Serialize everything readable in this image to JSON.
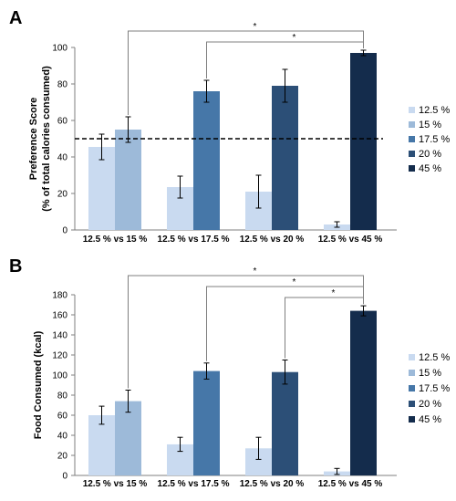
{
  "colors": {
    "12.5 %": "#c9daf0",
    "15 %": "#9dbad9",
    "17.5 %": "#4677a8",
    "20 %": "#2c4f77",
    "45 %": "#142c4c"
  },
  "chart_data": [
    {
      "panel": "A",
      "type": "bar",
      "ylabel": [
        "Preference Score",
        "(% of total calories consumed)"
      ],
      "ylim": [
        0,
        100
      ],
      "yticks": [
        0,
        20,
        40,
        60,
        80,
        100
      ],
      "reference_line": 50,
      "categories": [
        "12.5 % vs 15 %",
        "12.5 % vs 17.5 %",
        "12.5 % vs 20 %",
        "12.5 % vs 45 %"
      ],
      "groups": [
        {
          "bars": [
            {
              "series": "12.5 %",
              "value": 45.5,
              "err": 7
            },
            {
              "series": "15 %",
              "value": 55,
              "err": 7
            }
          ]
        },
        {
          "bars": [
            {
              "series": "12.5 %",
              "value": 23.5,
              "err": 6
            },
            {
              "series": "17.5 %",
              "value": 76,
              "err": 6
            }
          ]
        },
        {
          "bars": [
            {
              "series": "12.5 %",
              "value": 21,
              "err": 9
            },
            {
              "series": "20 %",
              "value": 79,
              "err": 9
            }
          ]
        },
        {
          "bars": [
            {
              "series": "12.5 %",
              "value": 3,
              "err": 1.5
            },
            {
              "series": "45 %",
              "value": 97,
              "err": 1.5
            }
          ]
        }
      ],
      "brackets": [
        {
          "from_group": 0,
          "label": "*"
        },
        {
          "from_group": 1,
          "label": "*"
        }
      ],
      "legend": [
        "12.5 %",
        "15 %",
        "17.5 %",
        "20 %",
        "45 %"
      ]
    },
    {
      "panel": "B",
      "type": "bar",
      "ylabel": [
        "Food Consumed (kcal)"
      ],
      "ylim": [
        0,
        180
      ],
      "yticks": [
        0,
        20,
        40,
        60,
        80,
        100,
        120,
        140,
        160,
        180
      ],
      "categories": [
        "12.5 % vs 15 %",
        "12.5 % vs 17.5 %",
        "12.5 % vs 20 %",
        "12.5 % vs 45 %"
      ],
      "groups": [
        {
          "bars": [
            {
              "series": "12.5 %",
              "value": 60,
              "err": 9
            },
            {
              "series": "15 %",
              "value": 74,
              "err": 11
            }
          ]
        },
        {
          "bars": [
            {
              "series": "12.5 %",
              "value": 31,
              "err": 7
            },
            {
              "series": "17.5 %",
              "value": 104,
              "err": 8
            }
          ]
        },
        {
          "bars": [
            {
              "series": "12.5 %",
              "value": 27,
              "err": 11
            },
            {
              "series": "20 %",
              "value": 103,
              "err": 12
            }
          ]
        },
        {
          "bars": [
            {
              "series": "12.5 %",
              "value": 4,
              "err": 3
            },
            {
              "series": "45 %",
              "value": 164,
              "err": 5
            }
          ]
        }
      ],
      "brackets": [
        {
          "from_group": 0,
          "label": "*"
        },
        {
          "from_group": 1,
          "label": "*"
        },
        {
          "from_group": 2,
          "label": "*"
        }
      ],
      "legend": [
        "12.5 %",
        "15 %",
        "17.5 %",
        "20 %",
        "45 %"
      ]
    }
  ]
}
